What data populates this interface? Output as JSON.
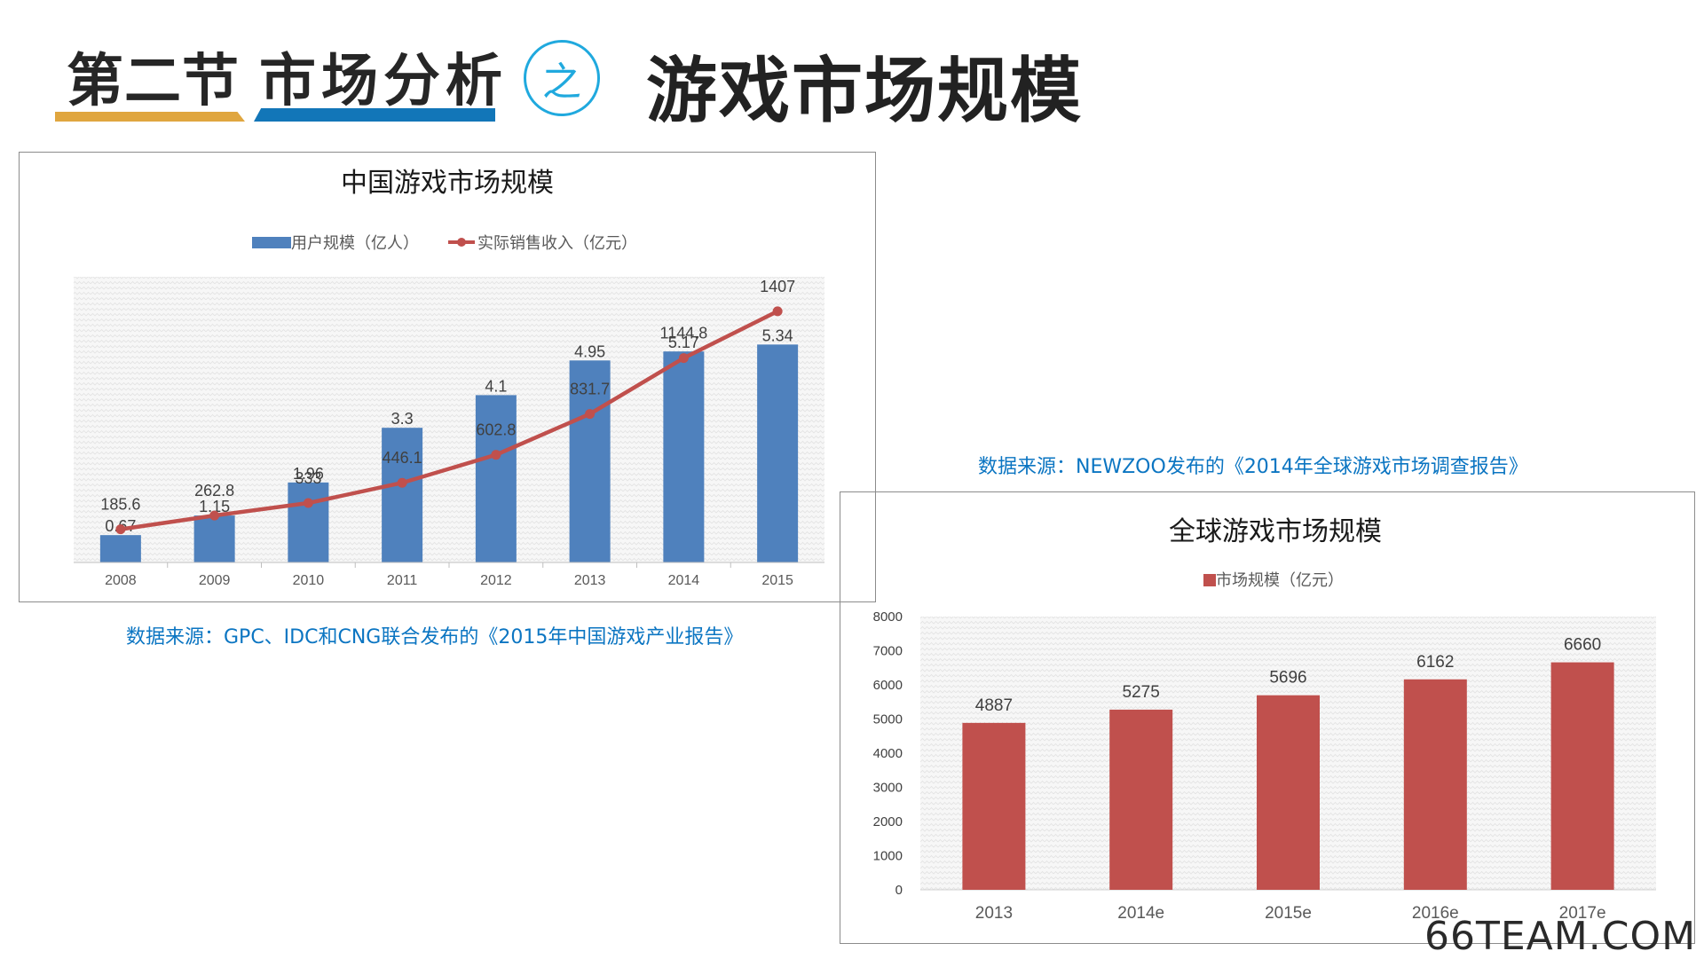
{
  "header": {
    "section": "第二节",
    "section_title": "市场分析",
    "circle_char": "之",
    "title": "游戏市场规模"
  },
  "colors": {
    "blue_series": "#4f81bd",
    "red_series": "#c0504d",
    "source_text": "#0b75c2",
    "accent_orange": "#e0a63f",
    "accent_blue": "#1276b8",
    "circle": "#20a9de"
  },
  "sources": {
    "china": "数据来源：GPC、IDC和CNG联合发布的《2015年中国游戏产业报告》",
    "global": "数据来源：NEWZOO发布的《2014年全球游戏市场调查报告》"
  },
  "watermark": "66TEAM.COM",
  "chart_data": [
    {
      "type": "bar+line",
      "title": "中国游戏市场规模",
      "categories": [
        "2008",
        "2009",
        "2010",
        "2011",
        "2012",
        "2013",
        "2014",
        "2015"
      ],
      "series": [
        {
          "name": "用户规模（亿人）",
          "type": "bar",
          "values": [
            0.67,
            1.15,
            1.96,
            3.3,
            4.1,
            4.95,
            5.17,
            5.34
          ],
          "labels": [
            "0.67",
            "1.15",
            "1.96",
            "3.3",
            "4.1",
            "4.95",
            "5.17",
            "5.34"
          ],
          "ylim": [
            0,
            7
          ]
        },
        {
          "name": "实际销售收入（亿元）",
          "type": "line",
          "values": [
            185.6,
            262.8,
            333,
            446.1,
            602.8,
            831.7,
            1144.8,
            1407
          ],
          "labels": [
            "185.6",
            "262.8",
            "333",
            "446.1",
            "602.8",
            "831.7",
            "1144.8",
            "1407"
          ],
          "ylim": [
            0,
            1600
          ]
        }
      ],
      "legend": "top",
      "grid": false
    },
    {
      "type": "bar",
      "title": "全球游戏市场规模",
      "categories": [
        "2013",
        "2014e",
        "2015e",
        "2016e",
        "2017e"
      ],
      "series": [
        {
          "name": "市场规模（亿元）",
          "values": [
            4887,
            5275,
            5696,
            6162,
            6660
          ],
          "labels": [
            "4887",
            "5275",
            "5696",
            "6162",
            "6660"
          ]
        }
      ],
      "ylim": [
        0,
        8000
      ],
      "yticks": [
        "8000",
        "7000",
        "6000",
        "5000",
        "4000",
        "3000",
        "2000",
        "1000",
        "0"
      ],
      "legend": "top",
      "grid": false
    }
  ]
}
